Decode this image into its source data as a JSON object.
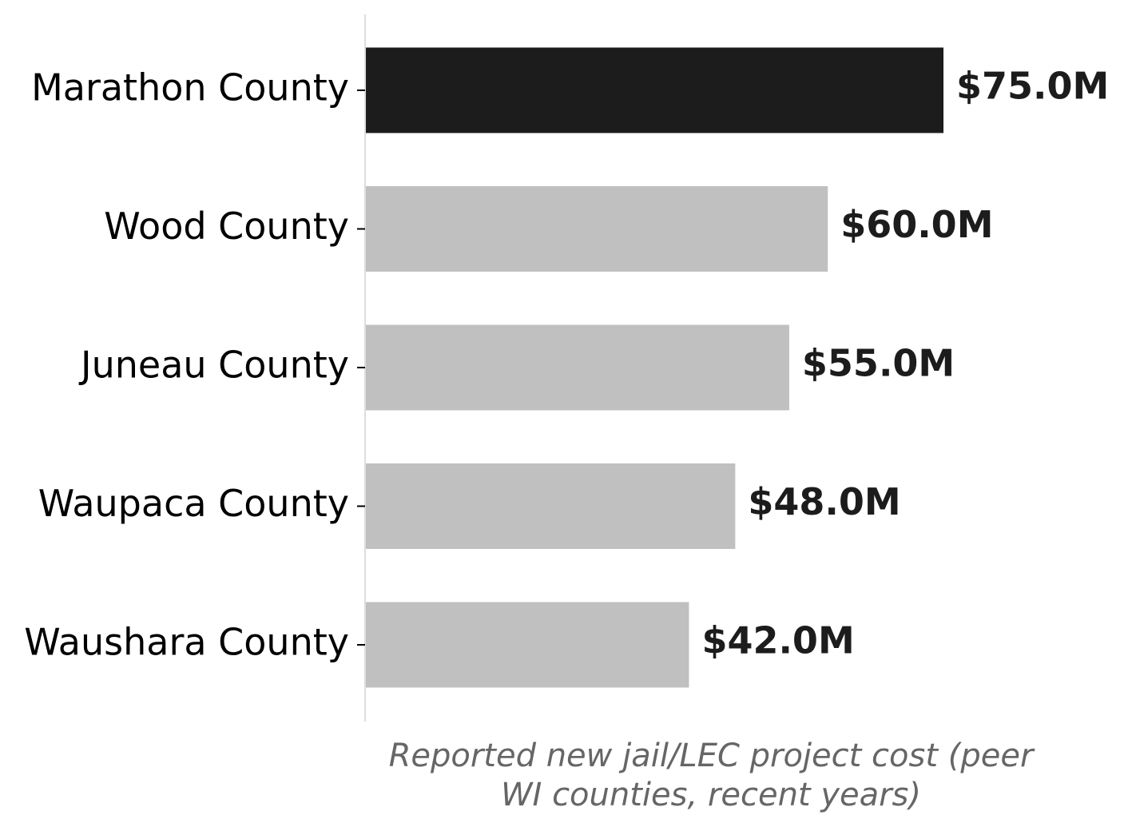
{
  "chart_data": {
    "type": "barh",
    "categories": [
      "Marathon County",
      "Wood County",
      "Juneau County",
      "Waupaca County",
      "Waushara County"
    ],
    "values": [
      75,
      60,
      55,
      48,
      42
    ],
    "value_labels": [
      "$75.0M",
      "$60.0M",
      "$55.0M",
      "$48.0M",
      "$42.0M"
    ],
    "colors": [
      "#1c1c1c",
      "#c0c0c0",
      "#c0c0c0",
      "#c0c0c0",
      "#c0c0c0"
    ],
    "xlabel": "Reported new jail/LEC project cost (peer WI counties, recent years)"
  }
}
